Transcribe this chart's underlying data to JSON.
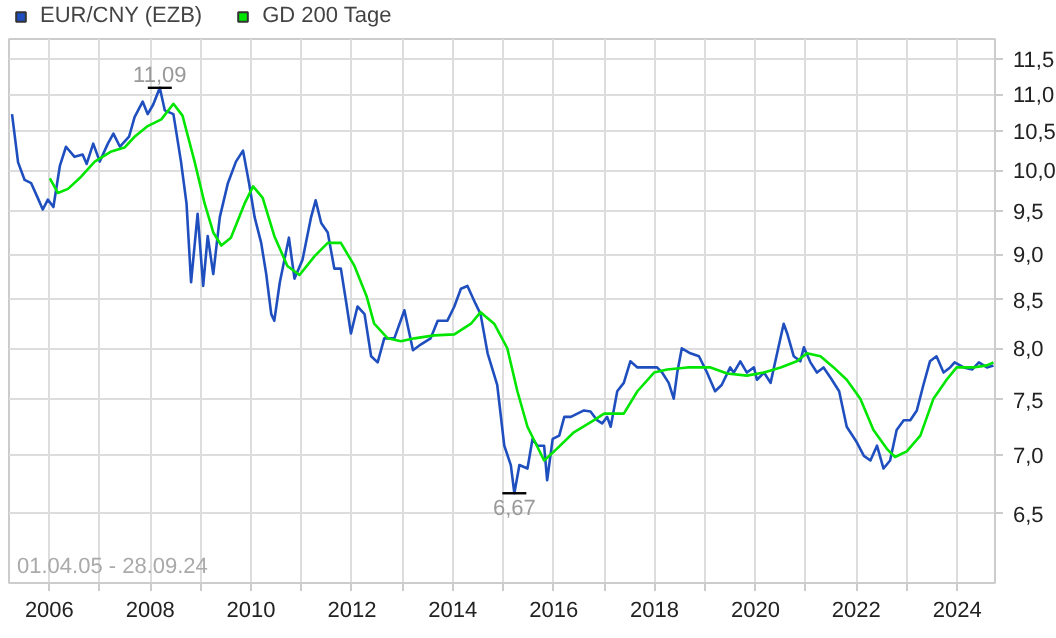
{
  "chart_data": {
    "type": "line",
    "log": "y",
    "grid": true,
    "legend": "top left",
    "marker": "none",
    "line_style": "solid",
    "xlim": [
      2005.2,
      2024.75
    ],
    "ylim": [
      5.96,
      11.79
    ],
    "xticks": [
      2006,
      {
        "value": 2007,
        "label": null
      },
      2008,
      {
        "value": 2009,
        "label": null
      },
      2010,
      {
        "value": 2011,
        "label": null
      },
      2012,
      {
        "value": 2013,
        "label": null
      },
      2014,
      {
        "value": 2015,
        "label": null
      },
      2016,
      {
        "value": 2017,
        "label": null
      },
      2018,
      {
        "value": 2019,
        "label": null
      },
      2020,
      {
        "value": 2021,
        "label": null
      },
      2022,
      {
        "value": 2023,
        "label": null
      },
      2024
    ],
    "yticks": [
      {
        "value": 6.5,
        "label": "6,5"
      },
      {
        "value": 7.0,
        "label": "7,0"
      },
      {
        "value": 7.5,
        "label": "7,5"
      },
      {
        "value": 8.0,
        "label": "8,0"
      },
      {
        "value": 8.5,
        "label": "8,5"
      },
      {
        "value": 9.0,
        "label": "9,0"
      },
      {
        "value": 9.5,
        "label": "9,5"
      },
      {
        "value": 10.0,
        "label": "10,0"
      },
      {
        "value": 10.5,
        "label": "10,5"
      },
      {
        "value": 11.0,
        "label": "11,0"
      },
      {
        "value": 11.5,
        "label": "11,5"
      }
    ],
    "annotations": [
      {
        "text": "11,09",
        "x": 2008.19,
        "y": 11.09
      },
      {
        "text": "6,67",
        "x": 2015.22,
        "y": 6.67
      },
      "01.04.05 - 28.09.24"
    ],
    "series": [
      {
        "name": "EUR/CNY (EZB)",
        "color": "#1f4fbf",
        "x": [
          2005.26,
          2005.38,
          2005.51,
          2005.64,
          2005.77,
          2005.87,
          2005.97,
          2006.08,
          2006.21,
          2006.33,
          2006.5,
          2006.66,
          2006.74,
          2006.87,
          2007.0,
          2007.16,
          2007.27,
          2007.4,
          2007.58,
          2007.69,
          2007.85,
          2007.95,
          2008.06,
          2008.19,
          2008.29,
          2008.46,
          2008.61,
          2008.72,
          2008.81,
          2008.94,
          2009.05,
          2009.14,
          2009.25,
          2009.38,
          2009.54,
          2009.7,
          2009.84,
          2009.96,
          2010.07,
          2010.2,
          2010.3,
          2010.4,
          2010.46,
          2010.57,
          2010.75,
          2010.86,
          2011.02,
          2011.19,
          2011.28,
          2011.39,
          2011.52,
          2011.65,
          2011.78,
          2011.89,
          2011.98,
          2012.11,
          2012.25,
          2012.38,
          2012.51,
          2012.64,
          2012.84,
          2013.04,
          2013.21,
          2013.37,
          2013.56,
          2013.7,
          2013.89,
          2014.03,
          2014.16,
          2014.29,
          2014.45,
          2014.55,
          2014.69,
          2014.88,
          2015.02,
          2015.15,
          2015.22,
          2015.32,
          2015.48,
          2015.58,
          2015.68,
          2015.81,
          2015.87,
          2015.98,
          2016.11,
          2016.21,
          2016.34,
          2016.47,
          2016.6,
          2016.73,
          2016.86,
          2016.96,
          2017.06,
          2017.13,
          2017.26,
          2017.39,
          2017.52,
          2017.66,
          2017.79,
          2017.92,
          2018.05,
          2018.15,
          2018.28,
          2018.38,
          2018.45,
          2018.54,
          2018.71,
          2018.88,
          2019.04,
          2019.2,
          2019.33,
          2019.5,
          2019.57,
          2019.7,
          2019.83,
          2019.97,
          2020.03,
          2020.17,
          2020.3,
          2020.43,
          2020.56,
          2020.63,
          2020.76,
          2020.89,
          2020.96,
          2021.09,
          2021.22,
          2021.35,
          2021.49,
          2021.66,
          2021.81,
          2022.01,
          2022.15,
          2022.28,
          2022.41,
          2022.54,
          2022.67,
          2022.8,
          2022.94,
          2023.07,
          2023.2,
          2023.33,
          2023.46,
          2023.59,
          2023.73,
          2023.86,
          2023.95,
          2024.13,
          2024.3,
          2024.43,
          2024.59,
          2024.72
        ],
        "values": [
          10.73,
          10.1,
          9.88,
          9.84,
          9.66,
          9.52,
          9.64,
          9.55,
          10.06,
          10.3,
          10.17,
          10.2,
          10.08,
          10.34,
          10.11,
          10.34,
          10.47,
          10.3,
          10.43,
          10.69,
          10.9,
          10.73,
          10.86,
          11.09,
          10.78,
          10.73,
          10.11,
          9.59,
          8.69,
          9.47,
          8.65,
          9.21,
          8.78,
          9.43,
          9.84,
          10.11,
          10.25,
          9.84,
          9.43,
          9.13,
          8.78,
          8.35,
          8.28,
          8.69,
          9.19,
          8.73,
          8.94,
          9.43,
          9.63,
          9.36,
          9.25,
          8.84,
          8.84,
          8.46,
          8.15,
          8.43,
          8.35,
          7.92,
          7.86,
          8.1,
          8.1,
          8.39,
          7.98,
          8.04,
          8.1,
          8.28,
          8.28,
          8.43,
          8.62,
          8.65,
          8.46,
          8.35,
          7.95,
          7.64,
          7.08,
          6.91,
          6.67,
          6.91,
          6.88,
          7.14,
          7.08,
          7.08,
          6.78,
          7.14,
          7.17,
          7.34,
          7.34,
          7.37,
          7.4,
          7.39,
          7.31,
          7.28,
          7.34,
          7.25,
          7.58,
          7.66,
          7.87,
          7.81,
          7.81,
          7.81,
          7.81,
          7.76,
          7.66,
          7.51,
          7.76,
          8.0,
          7.95,
          7.92,
          7.76,
          7.58,
          7.64,
          7.81,
          7.76,
          7.87,
          7.76,
          7.81,
          7.69,
          7.76,
          7.66,
          7.95,
          8.25,
          8.15,
          7.92,
          7.87,
          8.01,
          7.86,
          7.76,
          7.81,
          7.71,
          7.58,
          7.25,
          7.11,
          6.99,
          6.95,
          7.08,
          6.88,
          6.95,
          7.22,
          7.31,
          7.31,
          7.4,
          7.64,
          7.87,
          7.92,
          7.76,
          7.81,
          7.86,
          7.81,
          7.79,
          7.86,
          7.81,
          7.83
        ]
      },
      {
        "name": "GD 200 Tage",
        "color": "#00e600",
        "x": [
          2006.01,
          2006.17,
          2006.37,
          2006.63,
          2006.9,
          2007.23,
          2007.49,
          2007.69,
          2007.95,
          2008.22,
          2008.46,
          2008.64,
          2008.88,
          2009.08,
          2009.25,
          2009.41,
          2009.6,
          2009.87,
          2010.04,
          2010.23,
          2010.46,
          2010.72,
          2010.96,
          2011.26,
          2011.52,
          2011.78,
          2012.05,
          2012.29,
          2012.44,
          2012.71,
          2012.97,
          2013.24,
          2013.63,
          2014.03,
          2014.36,
          2014.55,
          2014.82,
          2015.08,
          2015.28,
          2015.48,
          2015.81,
          2016.01,
          2016.4,
          2016.8,
          2017.0,
          2017.39,
          2017.66,
          2017.99,
          2018.25,
          2018.65,
          2019.11,
          2019.44,
          2019.83,
          2020.17,
          2020.5,
          2020.82,
          2021.02,
          2021.29,
          2021.55,
          2021.81,
          2022.08,
          2022.34,
          2022.61,
          2022.77,
          2023.0,
          2023.27,
          2023.53,
          2023.79,
          2023.99,
          2024.32,
          2024.59,
          2024.72
        ],
        "values": [
          9.9,
          9.72,
          9.77,
          9.92,
          10.11,
          10.24,
          10.29,
          10.43,
          10.57,
          10.66,
          10.87,
          10.71,
          10.11,
          9.59,
          9.25,
          9.1,
          9.19,
          9.59,
          9.8,
          9.66,
          9.21,
          8.87,
          8.77,
          8.98,
          9.13,
          9.13,
          8.87,
          8.54,
          8.25,
          8.1,
          8.07,
          8.1,
          8.13,
          8.14,
          8.25,
          8.37,
          8.25,
          8.0,
          7.58,
          7.25,
          6.95,
          7.03,
          7.2,
          7.31,
          7.37,
          7.37,
          7.58,
          7.76,
          7.79,
          7.81,
          7.81,
          7.75,
          7.73,
          7.76,
          7.81,
          7.87,
          7.95,
          7.92,
          7.81,
          7.69,
          7.51,
          7.22,
          7.05,
          6.98,
          7.03,
          7.17,
          7.51,
          7.69,
          7.81,
          7.81,
          7.83,
          7.86
        ]
      }
    ]
  }
}
